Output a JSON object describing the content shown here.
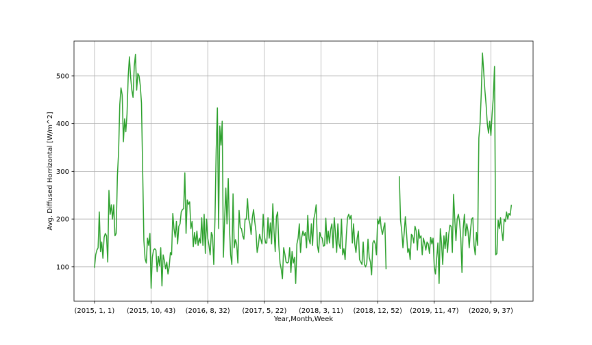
{
  "chart_data": {
    "type": "line",
    "title": "",
    "xlabel": "Year,Month,Week",
    "ylabel": "Avg. Diffused Horrizontal [W/m^2]",
    "x_tick_labels": [
      "(2015, 1, 1)",
      "(2015, 10, 43)",
      "(2016, 8, 32)",
      "(2017, 5, 22)",
      "(2018, 3, 11)",
      "(2018, 12, 52)",
      "(2019, 11, 47)",
      "(2020, 9, 37)"
    ],
    "x_tick_positions": [
      0,
      47,
      94,
      141,
      188,
      235,
      282,
      329
    ],
    "y_ticks": [
      100,
      200,
      300,
      400,
      500
    ],
    "xlim": [
      -17,
      364
    ],
    "ylim": [
      28,
      573
    ],
    "grid": true,
    "series": [
      {
        "color": "#2ca02c",
        "values": [
          98,
          125,
          135,
          140,
          215,
          132,
          152,
          118,
          162,
          170,
          165,
          110,
          260,
          210,
          230,
          200,
          230,
          165,
          170,
          290,
          340,
          440,
          475,
          460,
          362,
          410,
          383,
          420,
          500,
          540,
          497,
          470,
          455,
          520,
          545,
          470,
          505,
          500,
          480,
          443,
          300,
          155,
          117,
          108,
          160,
          145,
          170,
          55,
          120,
          135,
          138,
          135,
          90,
          122,
          102,
          140,
          60,
          125,
          113,
          96,
          110,
          85,
          100,
          130,
          125,
          212,
          180,
          162,
          195,
          148,
          185,
          190,
          215,
          220,
          222,
          297,
          170,
          240,
          231,
          236,
          180,
          195,
          142,
          172,
          148,
          175,
          145,
          160,
          150,
          203,
          145,
          210,
          128,
          200,
          160,
          145,
          125,
          172,
          165,
          105,
          200,
          345,
          433,
          180,
          395,
          355,
          405,
          120,
          200,
          265,
          190,
          285,
          183,
          125,
          105,
          253,
          140,
          157,
          148,
          108,
          218,
          182,
          180,
          165,
          158,
          200,
          200,
          243,
          200,
          190,
          168,
          203,
          220,
          195,
          175,
          130,
          145,
          168,
          158,
          148,
          210,
          165,
          150,
          150,
          203,
          160,
          192,
          148,
          232,
          175,
          132,
          205,
          215,
          145,
          108,
          95,
          75,
          140,
          127,
          110,
          108,
          110,
          140,
          88,
          132,
          108,
          120,
          65,
          148,
          160,
          190,
          130,
          162,
          175,
          165,
          172,
          140,
          208,
          158,
          148,
          190,
          145,
          200,
          212,
          230,
          145,
          130,
          172,
          163,
          160,
          143,
          145,
          202,
          148,
          175,
          150,
          178,
          190,
          140,
          203,
          170,
          130,
          190,
          148,
          138,
          200,
          125,
          138,
          115,
          165,
          203,
          210,
          200,
          208,
          150,
          190,
          148,
          130,
          160,
          175,
          115,
          110,
          105,
          152,
          105,
          100,
          108,
          158,
          120,
          110,
          83,
          150,
          155,
          148,
          125,
          200,
          190,
          205,
          180,
          168,
          182,
          192,
          95,
          null,
          null,
          null,
          null,
          null,
          null,
          null,
          null,
          null,
          null,
          290,
          198,
          175,
          140,
          170,
          205,
          170,
          130,
          138,
          115,
          168,
          165,
          150,
          185,
          175,
          135,
          178,
          160,
          165,
          125,
          160,
          150,
          135,
          152,
          148,
          128,
          162,
          148,
          160,
          100,
          85,
          118,
          150,
          65,
          180,
          150,
          105,
          165,
          138,
          172,
          130,
          168,
          187,
          185,
          130,
          252,
          200,
          155,
          200,
          210,
          195,
          160,
          88,
          180,
          210,
          165,
          190,
          175,
          140,
          175,
          200,
          203,
          145,
          125,
          172,
          145,
          370,
          400,
          463,
          548,
          510,
          470,
          440,
          400,
          380,
          405,
          375,
          420,
          455,
          520,
          125,
          128,
          198,
          180,
          203,
          175,
          155,
          200,
          195,
          215,
          200,
          212,
          208,
          230
        ]
      }
    ]
  }
}
